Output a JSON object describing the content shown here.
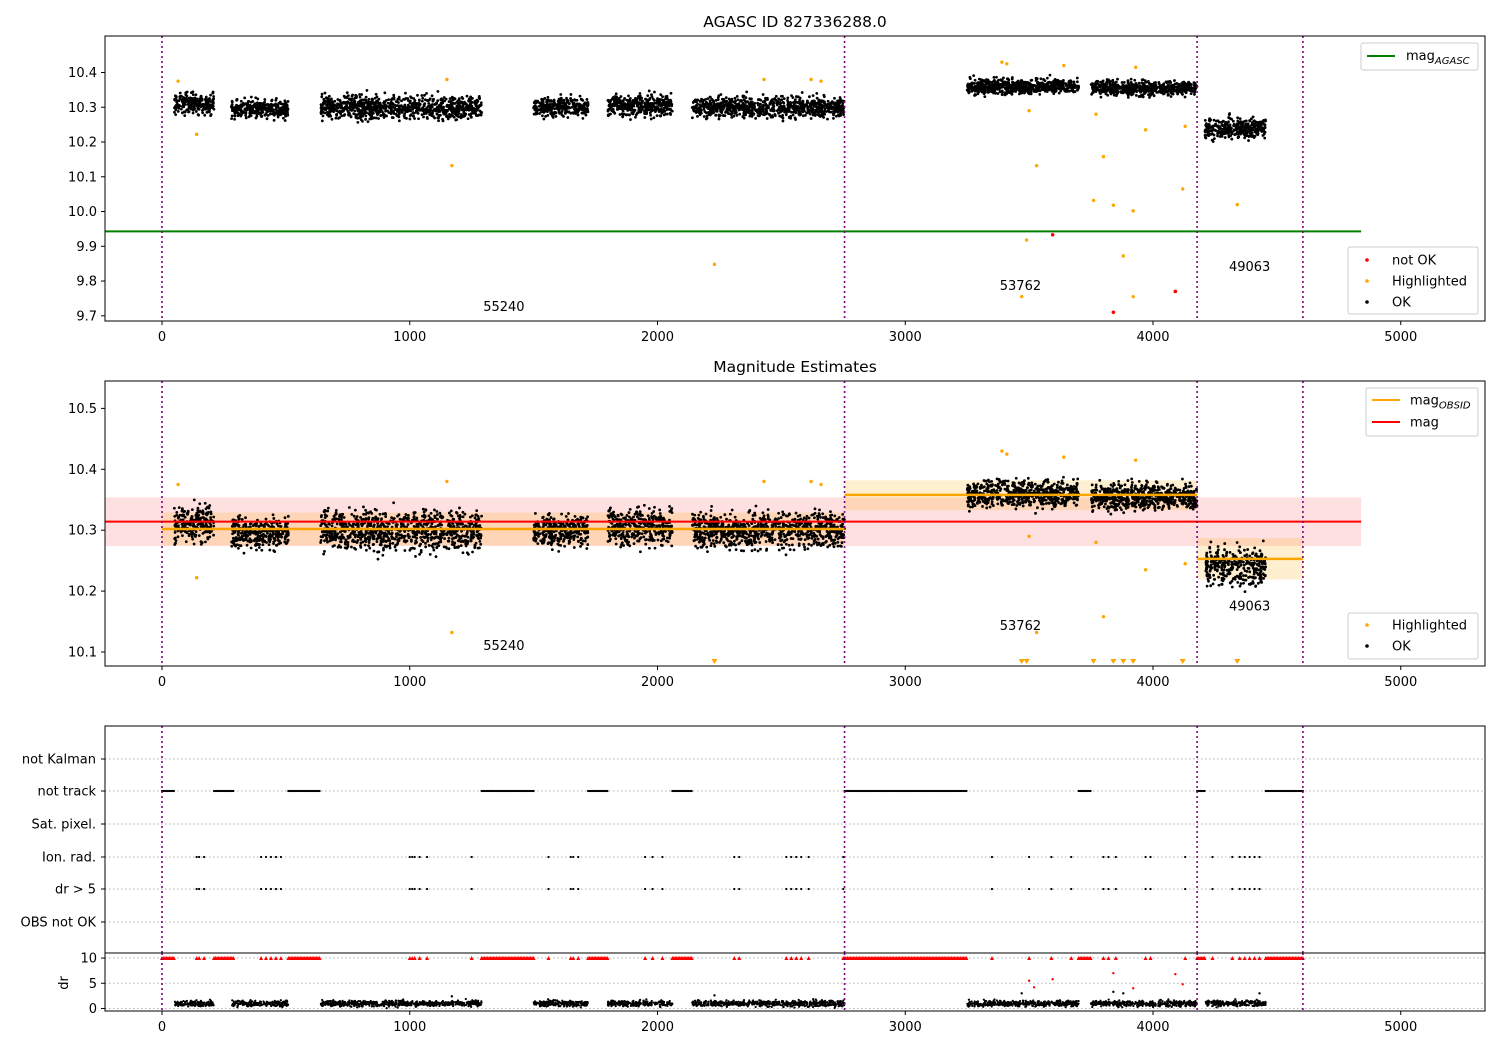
{
  "chart_data": [
    {
      "type": "scatter",
      "title": "AGASC ID 827336288.0",
      "xlim": [
        -230,
        5340
      ],
      "ylim": [
        9.685,
        10.505
      ],
      "xticks": [
        0,
        1000,
        2000,
        3000,
        4000,
        5000
      ],
      "yticks": [
        9.7,
        9.8,
        9.9,
        10.0,
        10.1,
        10.2,
        10.3,
        10.4
      ],
      "legend_upper": {
        "position": "upper-right",
        "entries": [
          {
            "label": "mag",
            "sub": "AGASC",
            "color": "#008000"
          }
        ]
      },
      "legend_lower": {
        "position": "lower-right",
        "entries": [
          {
            "label": "not OK",
            "color": "#ff0000"
          },
          {
            "label": "Highlighted",
            "color": "#ffa500"
          },
          {
            "label": "OK",
            "color": "#000000"
          }
        ]
      },
      "hline": {
        "y": 9.943,
        "x": [
          -230,
          4840
        ],
        "color": "#008000",
        "name": "mag_AGASC"
      },
      "obs_boundaries": [
        0,
        2755,
        4178,
        4605
      ],
      "obsid_labels": [
        {
          "text": "55240",
          "x": 1380,
          "y": 9.725
        },
        {
          "text": "53762",
          "x": 3465,
          "y": 9.785
        },
        {
          "text": "49063",
          "x": 4390,
          "y": 9.84
        }
      ],
      "ok_segments": [
        {
          "x": [
            50,
            210
          ],
          "mean": 10.31,
          "spread": 0.025
        },
        {
          "x": [
            280,
            510
          ],
          "mean": 10.295,
          "spread": 0.022
        },
        {
          "x": [
            640,
            1290
          ],
          "mean": 10.3,
          "spread": 0.028
        },
        {
          "x": [
            1500,
            1720
          ],
          "mean": 10.3,
          "spread": 0.022
        },
        {
          "x": [
            1800,
            2060
          ],
          "mean": 10.305,
          "spread": 0.026
        },
        {
          "x": [
            2140,
            2755
          ],
          "mean": 10.3,
          "spread": 0.025
        },
        {
          "x": [
            3250,
            3700
          ],
          "mean": 10.36,
          "spread": 0.018
        },
        {
          "x": [
            3750,
            4178
          ],
          "mean": 10.355,
          "spread": 0.018
        },
        {
          "x": [
            4210,
            4455
          ],
          "mean": 10.24,
          "spread": 0.025
        }
      ],
      "highlighted_points": [
        {
          "x": 65,
          "y": 10.375
        },
        {
          "x": 140,
          "y": 10.222
        },
        {
          "x": 1150,
          "y": 10.38
        },
        {
          "x": 1170,
          "y": 10.132
        },
        {
          "x": 2230,
          "y": 9.848
        },
        {
          "x": 2430,
          "y": 10.38
        },
        {
          "x": 2620,
          "y": 10.38
        },
        {
          "x": 2660,
          "y": 10.375
        },
        {
          "x": 3390,
          "y": 10.43
        },
        {
          "x": 3410,
          "y": 10.425
        },
        {
          "x": 3470,
          "y": 9.755
        },
        {
          "x": 3490,
          "y": 9.918
        },
        {
          "x": 3500,
          "y": 10.29
        },
        {
          "x": 3530,
          "y": 10.132
        },
        {
          "x": 3640,
          "y": 10.42
        },
        {
          "x": 3760,
          "y": 10.032
        },
        {
          "x": 3770,
          "y": 10.28
        },
        {
          "x": 3800,
          "y": 10.158
        },
        {
          "x": 3840,
          "y": 10.018
        },
        {
          "x": 3880,
          "y": 9.872
        },
        {
          "x": 3920,
          "y": 9.755
        },
        {
          "x": 3920,
          "y": 10.002
        },
        {
          "x": 3930,
          "y": 10.415
        },
        {
          "x": 3970,
          "y": 10.235
        },
        {
          "x": 4120,
          "y": 10.065
        },
        {
          "x": 4130,
          "y": 10.245
        },
        {
          "x": 4340,
          "y": 10.02
        }
      ],
      "not_ok_points": [
        {
          "x": 3595,
          "y": 9.933
        },
        {
          "x": 3840,
          "y": 9.71
        },
        {
          "x": 4090,
          "y": 9.77
        }
      ]
    },
    {
      "type": "scatter",
      "title": "Magnitude Estimates",
      "xlim": [
        -230,
        5340
      ],
      "ylim": [
        10.077,
        10.545
      ],
      "xticks": [
        0,
        1000,
        2000,
        3000,
        4000,
        5000
      ],
      "yticks": [
        10.1,
        10.2,
        10.3,
        10.4,
        10.5
      ],
      "legend_upper": {
        "position": "upper-right",
        "entries": [
          {
            "label": "mag",
            "sub": "OBSID",
            "color": "#ffa500"
          },
          {
            "label": "mag",
            "sub": "",
            "color": "#ff0000"
          }
        ]
      },
      "legend_lower": {
        "position": "lower-right",
        "entries": [
          {
            "label": "Highlighted",
            "color": "#ffa500"
          },
          {
            "label": "OK",
            "color": "#000000"
          }
        ]
      },
      "mag_total": {
        "y": 10.314,
        "band": [
          10.274,
          10.354
        ],
        "x": [
          -230,
          4840
        ]
      },
      "mag_obsid": [
        {
          "x": [
            0,
            2755
          ],
          "y": 10.302,
          "band": [
            10.275,
            10.329
          ]
        },
        {
          "x": [
            2755,
            4178
          ],
          "y": 10.358,
          "band": [
            10.333,
            10.382
          ]
        },
        {
          "x": [
            4178,
            4605
          ],
          "y": 10.253,
          "band": [
            10.219,
            10.287
          ]
        }
      ],
      "obs_boundaries": [
        0,
        2755,
        4178,
        4605
      ],
      "obsid_labels": [
        {
          "text": "55240",
          "x": 1380,
          "y": 10.11
        },
        {
          "text": "53762",
          "x": 3465,
          "y": 10.143
        },
        {
          "text": "49063",
          "x": 4390,
          "y": 10.175
        }
      ],
      "out_of_range_markers_x": [
        2230,
        3470,
        3490,
        3760,
        3840,
        3880,
        3920,
        4120,
        4340
      ]
    },
    {
      "type": "scatter",
      "title": "",
      "xlim": [
        -230,
        5340
      ],
      "xticks": [
        0,
        1000,
        2000,
        3000,
        4000,
        5000
      ],
      "flag_rows": [
        "not Kalman",
        "not track",
        "Sat. pixel.",
        "Ion. rad.",
        "dr > 5",
        "OBS not OK"
      ],
      "not_track_intervals": [
        [
          0,
          50
        ],
        [
          210,
          290
        ],
        [
          510,
          640
        ],
        [
          1290,
          1500
        ],
        [
          1720,
          1800
        ],
        [
          2060,
          2140
        ],
        [
          2755,
          3250
        ],
        [
          3700,
          3750
        ],
        [
          4178,
          4210
        ],
        [
          4455,
          4605
        ]
      ],
      "ion_rad_x": [
        140,
        150,
        170,
        400,
        420,
        440,
        460,
        480,
        1000,
        1010,
        1020,
        1040,
        1070,
        1250,
        1560,
        1650,
        1660,
        1680,
        1950,
        1980,
        2020,
        2310,
        2330,
        2520,
        2540,
        2560,
        2580,
        2610,
        2750,
        3350,
        3500,
        3590,
        3670,
        3800,
        3820,
        3850,
        3970,
        3990,
        4130,
        4240,
        4320,
        4350,
        4370,
        4390,
        4410,
        4430
      ]
    },
    {
      "type": "line",
      "title": "",
      "xlim": [
        -230,
        5340
      ],
      "ylim": [
        -0.5,
        11
      ],
      "xticks": [
        0,
        1000,
        2000,
        3000,
        4000,
        5000
      ],
      "yticks": [
        0,
        5,
        10
      ],
      "ylabel": "dr",
      "dr_baseline": 1,
      "dr_scatter_outliers": [
        {
          "x": 1170,
          "y": 2.4
        },
        {
          "x": 2230,
          "y": 2.6
        },
        {
          "x": 3470,
          "y": 3.0
        },
        {
          "x": 3500,
          "y": 5.5
        },
        {
          "x": 3520,
          "y": 4.2
        },
        {
          "x": 3595,
          "y": 5.8
        },
        {
          "x": 3840,
          "y": 3.3
        },
        {
          "x": 3840,
          "y": 7.0
        },
        {
          "x": 3880,
          "y": 3.0
        },
        {
          "x": 3920,
          "y": 4.0
        },
        {
          "x": 4090,
          "y": 6.8
        },
        {
          "x": 4120,
          "y": 4.8
        },
        {
          "x": 4430,
          "y": 3.0
        }
      ]
    }
  ]
}
